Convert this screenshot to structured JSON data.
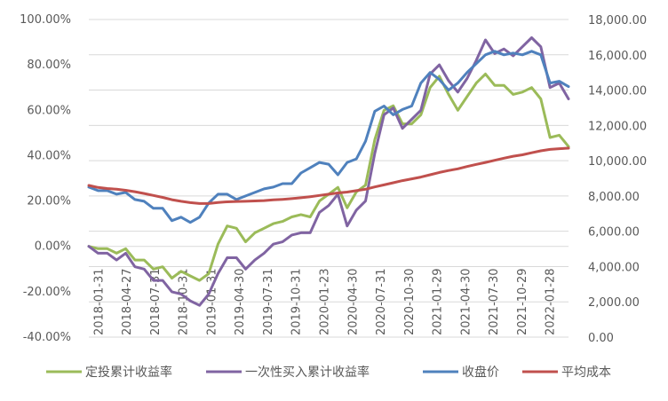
{
  "chart_data": {
    "type": "line",
    "left_axis": {
      "ticks": [
        "100.00%",
        "80.00%",
        "60.00%",
        "40.00%",
        "20.00%",
        "0.00%",
        "-20.00%",
        "-40.00%"
      ],
      "tick_values": [
        100,
        80,
        60,
        40,
        20,
        0,
        -20,
        -40
      ],
      "ylim": [
        -40,
        100
      ]
    },
    "right_axis": {
      "ticks": [
        "18,000.00",
        "16,000.00",
        "14,000.00",
        "12,000.00",
        "10,000.00",
        "8,000.00",
        "6,000.00",
        "4,000.00",
        "2,000.00",
        "0.00"
      ],
      "tick_values": [
        18000,
        16000,
        14000,
        12000,
        10000,
        8000,
        6000,
        4000,
        2000,
        0
      ],
      "ylim": [
        0,
        18000
      ]
    },
    "x_tick_labels": [
      "2018-01-31",
      "2018-04-27",
      "2018-07-31",
      "2018-10-31",
      "2019-01-31",
      "2019-04-30",
      "2019-07-31",
      "2019-10-31",
      "2020-01-23",
      "2020-04-30",
      "2020-07-31",
      "2020-10-30",
      "2021-01-29",
      "2021-04-30",
      "2021-07-30",
      "2021-10-29",
      "2022-01-28"
    ],
    "grid": true,
    "legend_position": "bottom",
    "series": [
      {
        "name": "定投累计收益率",
        "axis": "left",
        "color": "#9BBB59",
        "values": [
          0,
          -1,
          -1,
          -3,
          -1,
          -6,
          -6,
          -10,
          -9,
          -14,
          -11,
          -13,
          -15,
          -12,
          1,
          9,
          8,
          2,
          6,
          8,
          10,
          11,
          13,
          14,
          13,
          20,
          23,
          26,
          17,
          24,
          27,
          47,
          60,
          62,
          54,
          54,
          58,
          70,
          75,
          67,
          60,
          66,
          72,
          76,
          71,
          71,
          67,
          68,
          70,
          65,
          48,
          49,
          44
        ]
      },
      {
        "name": "一次性买入累计收益率",
        "axis": "left",
        "color": "#8064A2",
        "values": [
          0,
          -3,
          -3,
          -6,
          -3,
          -9,
          -10,
          -15,
          -15,
          -20,
          -21,
          -24,
          -26,
          -21,
          -12,
          -5,
          -5,
          -10,
          -6,
          -3,
          1,
          2,
          5,
          6,
          6,
          15,
          18,
          23,
          9,
          16,
          20,
          41,
          58,
          61,
          52,
          56,
          60,
          76,
          80,
          73,
          68,
          74,
          82,
          91,
          85,
          87,
          84,
          88,
          92,
          88,
          70,
          72,
          65
        ]
      },
      {
        "name": "收盘价",
        "axis": "right",
        "color": "#4F81BD",
        "values": [
          8500,
          8300,
          8300,
          8100,
          8200,
          7800,
          7700,
          7300,
          7300,
          6600,
          6800,
          6500,
          6800,
          7600,
          8100,
          8100,
          7800,
          8000,
          8200,
          8400,
          8500,
          8700,
          8700,
          9300,
          9600,
          9900,
          9800,
          9200,
          9900,
          10100,
          11100,
          12800,
          13100,
          12600,
          12900,
          13100,
          14400,
          15000,
          14600,
          14000,
          14400,
          15000,
          15500,
          16000,
          16200,
          16000,
          16100,
          16000,
          16200,
          16000,
          14400,
          14500,
          14200
        ]
      },
      {
        "name": "平均成本",
        "axis": "right",
        "color": "#C0504D",
        "values": [
          8600,
          8480,
          8420,
          8380,
          8320,
          8240,
          8140,
          8030,
          7920,
          7790,
          7700,
          7620,
          7570,
          7570,
          7630,
          7670,
          7690,
          7700,
          7720,
          7740,
          7780,
          7810,
          7850,
          7900,
          7960,
          8030,
          8100,
          8170,
          8220,
          8300,
          8380,
          8510,
          8630,
          8750,
          8870,
          8970,
          9070,
          9200,
          9330,
          9440,
          9540,
          9670,
          9790,
          9900,
          10020,
          10140,
          10250,
          10330,
          10450,
          10560,
          10640,
          10680,
          10710
        ]
      }
    ]
  }
}
